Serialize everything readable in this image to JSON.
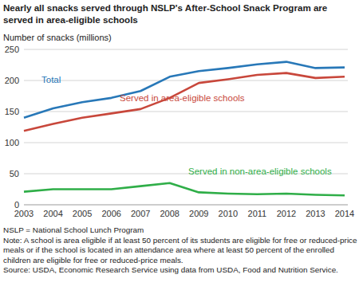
{
  "chart_data": {
    "type": "line",
    "title": "Nearly all snacks served through NSLP's After-School Snack Program are served in area-eligible schools",
    "y_label": "Number of snacks (millions)",
    "categories": [
      "2003",
      "2004",
      "2005",
      "2006",
      "2007",
      "2008",
      "2009",
      "2010",
      "2011",
      "2012",
      "2013",
      "2014"
    ],
    "series": [
      {
        "name": "Total",
        "color": "#2878b8",
        "values": [
          140,
          155,
          165,
          172,
          183,
          206,
          215,
          220,
          226,
          230,
          220,
          221
        ]
      },
      {
        "name": "Served in area-eligible schools",
        "color": "#c8473b",
        "values": [
          119,
          130,
          140,
          147,
          154,
          172,
          196,
          202,
          209,
          212,
          204,
          206
        ]
      },
      {
        "name": "Served in non-area-eligible schools",
        "color": "#2fae48",
        "values": [
          21,
          25,
          25,
          25,
          30,
          35,
          20,
          18,
          17,
          18,
          16,
          15
        ]
      }
    ],
    "ylim": [
      0,
      250
    ],
    "yticks": [
      0,
      50,
      100,
      150,
      200,
      250
    ],
    "grid": true,
    "annotations": [
      "NSLP = National School Lunch Program",
      "Note: A school is area eligible if at least 50 percent of its students are eligible for free or reduced-price meals or if the school is located in an attendance area where at least 50 percent of the enrolled children are eligible for free or reduced-price meals.",
      "Source: USDA, Economic Research Service using data from USDA, Food and Nutrition Service."
    ]
  }
}
